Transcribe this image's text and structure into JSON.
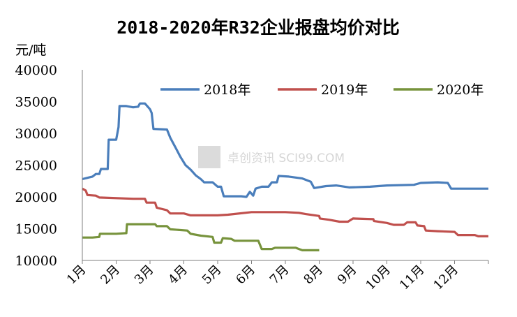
{
  "chart_data": {
    "type": "line",
    "title": "2018-2020年R32企业报盘均价对比",
    "ylabel": "元/吨",
    "ylim": [
      10000,
      40000
    ],
    "yticks": [
      "40000",
      "35000",
      "30000",
      "25000",
      "20000",
      "15000",
      "10000"
    ],
    "xticks": [
      "1月",
      "2月",
      "3月",
      "4月",
      "5月",
      "6月",
      "7月",
      "8月",
      "9月",
      "10月",
      "11月",
      "12月"
    ],
    "x_unit": "月",
    "x_domain": [
      1,
      13
    ],
    "legend_position": "top-right",
    "grid": false,
    "watermark": "卓创资讯 SCI99.COM",
    "series": [
      {
        "name": "2018年",
        "color": "#4a7ebb",
        "points": [
          [
            1.0,
            22800
          ],
          [
            1.15,
            23000
          ],
          [
            1.3,
            23200
          ],
          [
            1.4,
            23600
          ],
          [
            1.5,
            23600
          ],
          [
            1.55,
            24400
          ],
          [
            1.75,
            24400
          ],
          [
            1.78,
            29000
          ],
          [
            2.0,
            29000
          ],
          [
            2.07,
            31000
          ],
          [
            2.1,
            34300
          ],
          [
            2.3,
            34300
          ],
          [
            2.5,
            34100
          ],
          [
            2.65,
            34200
          ],
          [
            2.7,
            34700
          ],
          [
            2.85,
            34700
          ],
          [
            3.0,
            33800
          ],
          [
            3.05,
            33200
          ],
          [
            3.1,
            30700
          ],
          [
            3.5,
            30600
          ],
          [
            3.6,
            29300
          ],
          [
            3.75,
            27800
          ],
          [
            3.9,
            26300
          ],
          [
            4.05,
            25000
          ],
          [
            4.2,
            24300
          ],
          [
            4.35,
            23400
          ],
          [
            4.5,
            22800
          ],
          [
            4.6,
            22300
          ],
          [
            4.85,
            22300
          ],
          [
            5.0,
            21600
          ],
          [
            5.1,
            21600
          ],
          [
            5.18,
            20100
          ],
          [
            5.7,
            20100
          ],
          [
            5.85,
            20000
          ],
          [
            5.95,
            20800
          ],
          [
            6.05,
            20200
          ],
          [
            6.12,
            21300
          ],
          [
            6.3,
            21600
          ],
          [
            6.5,
            21600
          ],
          [
            6.6,
            22300
          ],
          [
            6.75,
            22300
          ],
          [
            6.8,
            23300
          ],
          [
            7.1,
            23200
          ],
          [
            7.5,
            22900
          ],
          [
            7.75,
            22400
          ],
          [
            7.85,
            21400
          ],
          [
            8.2,
            21700
          ],
          [
            8.5,
            21800
          ],
          [
            8.9,
            21500
          ],
          [
            9.5,
            21600
          ],
          [
            10.0,
            21800
          ],
          [
            10.8,
            21900
          ],
          [
            11.0,
            22200
          ],
          [
            11.5,
            22300
          ],
          [
            11.8,
            22200
          ],
          [
            11.9,
            21300
          ],
          [
            12.5,
            21300
          ],
          [
            13.0,
            21300
          ]
        ]
      },
      {
        "name": "2019年",
        "color": "#c0504d",
        "points": [
          [
            1.0,
            21300
          ],
          [
            1.1,
            21000
          ],
          [
            1.15,
            20300
          ],
          [
            1.4,
            20200
          ],
          [
            1.5,
            19900
          ],
          [
            2.5,
            19700
          ],
          [
            2.85,
            19700
          ],
          [
            2.9,
            19100
          ],
          [
            3.15,
            19100
          ],
          [
            3.2,
            18300
          ],
          [
            3.5,
            17900
          ],
          [
            3.6,
            17400
          ],
          [
            4.0,
            17400
          ],
          [
            4.2,
            17100
          ],
          [
            4.8,
            17100
          ],
          [
            5.0,
            17100
          ],
          [
            5.3,
            17200
          ],
          [
            6.0,
            17600
          ],
          [
            6.5,
            17600
          ],
          [
            7.0,
            17600
          ],
          [
            7.4,
            17500
          ],
          [
            7.6,
            17300
          ],
          [
            8.0,
            17000
          ],
          [
            8.02,
            16600
          ],
          [
            8.3,
            16400
          ],
          [
            8.6,
            16100
          ],
          [
            8.85,
            16100
          ],
          [
            9.0,
            16600
          ],
          [
            9.6,
            16500
          ],
          [
            9.62,
            16200
          ],
          [
            10.0,
            15900
          ],
          [
            10.2,
            15600
          ],
          [
            10.5,
            15600
          ],
          [
            10.6,
            16000
          ],
          [
            10.85,
            16000
          ],
          [
            10.9,
            15500
          ],
          [
            11.1,
            15400
          ],
          [
            11.15,
            14700
          ],
          [
            11.5,
            14600
          ],
          [
            12.0,
            14500
          ],
          [
            12.1,
            14000
          ],
          [
            12.6,
            14000
          ],
          [
            12.7,
            13800
          ],
          [
            13.0,
            13800
          ]
        ]
      },
      {
        "name": "2020年",
        "color": "#77933c",
        "points": [
          [
            1.0,
            13600
          ],
          [
            1.3,
            13600
          ],
          [
            1.5,
            13700
          ],
          [
            1.52,
            14200
          ],
          [
            2.0,
            14200
          ],
          [
            2.3,
            14300
          ],
          [
            2.32,
            15700
          ],
          [
            3.0,
            15700
          ],
          [
            3.15,
            15700
          ],
          [
            3.2,
            15400
          ],
          [
            3.5,
            15400
          ],
          [
            3.6,
            14900
          ],
          [
            4.1,
            14700
          ],
          [
            4.2,
            14200
          ],
          [
            4.5,
            13900
          ],
          [
            4.85,
            13700
          ],
          [
            4.9,
            12800
          ],
          [
            5.1,
            12800
          ],
          [
            5.15,
            13500
          ],
          [
            5.4,
            13400
          ],
          [
            5.5,
            13100
          ],
          [
            6.0,
            13100
          ],
          [
            6.2,
            13100
          ],
          [
            6.3,
            11800
          ],
          [
            6.6,
            11800
          ],
          [
            6.7,
            12000
          ],
          [
            7.3,
            12000
          ],
          [
            7.4,
            11800
          ],
          [
            7.5,
            11600
          ],
          [
            8.0,
            11600
          ]
        ]
      }
    ]
  }
}
